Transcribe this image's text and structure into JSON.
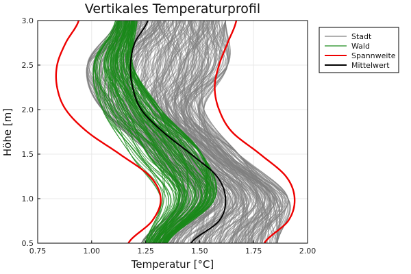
{
  "chart_data": {
    "type": "line",
    "title": "Vertikales Temperaturprofil",
    "xlabel": "Temperatur [°C]",
    "ylabel": "Höhe [m]",
    "xlim": [
      0.75,
      2.0
    ],
    "ylim": [
      0.5,
      3.0
    ],
    "xticks": [
      "0.75",
      "1.00",
      "1.25",
      "1.50",
      "1.75",
      "2.00"
    ],
    "yticks": [
      "0.5",
      "1.0",
      "1.5",
      "2.0",
      "2.5",
      "3.0"
    ],
    "grid": true,
    "legend_position": "top-right",
    "series": [
      {
        "name": "Stadt",
        "color": "#808080",
        "count": 300,
        "y": [
          0.5,
          1.0,
          1.5,
          2.0,
          2.5,
          3.0
        ],
        "x_min": [
          1.23,
          1.42,
          1.27,
          1.05,
          0.98,
          1.12
        ],
        "x_max": [
          1.86,
          1.91,
          1.68,
          1.52,
          1.63,
          1.62
        ]
      },
      {
        "name": "Wald",
        "color": "#1a8a1a",
        "count": 100,
        "y": [
          0.5,
          1.0,
          1.5,
          2.0,
          2.5,
          3.0
        ],
        "x_min": [
          1.24,
          1.32,
          1.18,
          1.05,
          1.01,
          1.11
        ],
        "x_max": [
          1.35,
          1.57,
          1.51,
          1.32,
          1.19,
          1.21
        ]
      },
      {
        "name": "Spannweite",
        "color": "#ee0000",
        "lines": [
          {
            "y": [
              0.5,
              0.75,
              1.0,
              1.25,
              1.5,
              1.75,
              2.0,
              2.25,
              2.5,
              2.75,
              3.0
            ],
            "x": [
              1.17,
              1.28,
              1.32,
              1.27,
              1.13,
              0.98,
              0.88,
              0.84,
              0.84,
              0.88,
              0.94
            ]
          },
          {
            "y": [
              0.5,
              0.75,
              1.0,
              1.25,
              1.5,
              1.75,
              2.0,
              2.25,
              2.5,
              2.75,
              3.0
            ],
            "x": [
              1.8,
              1.91,
              1.94,
              1.9,
              1.78,
              1.65,
              1.59,
              1.57,
              1.59,
              1.63,
              1.67
            ]
          }
        ]
      },
      {
        "name": "Mittelwert",
        "color": "#000000",
        "y": [
          0.5,
          0.75,
          1.0,
          1.25,
          1.5,
          1.75,
          2.0,
          2.25,
          2.5,
          2.75,
          3.0
        ],
        "x": [
          1.46,
          1.59,
          1.62,
          1.58,
          1.46,
          1.33,
          1.23,
          1.19,
          1.18,
          1.2,
          1.26
        ]
      }
    ]
  }
}
